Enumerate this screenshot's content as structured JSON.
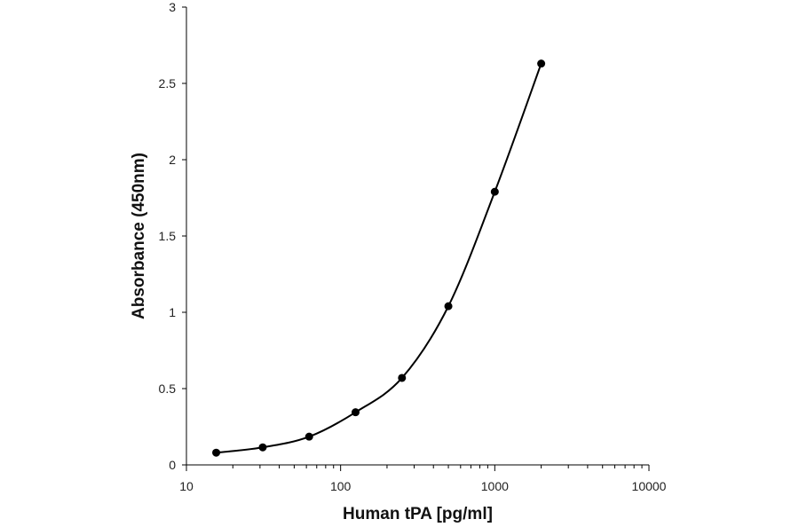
{
  "chart_data": {
    "type": "scatter",
    "title": "",
    "xlabel": "Human tPA [pg/ml]",
    "ylabel": "Absorbance (450nm)",
    "x_scale": "log",
    "xlim": [
      10,
      10000
    ],
    "ylim": [
      0,
      3
    ],
    "x_ticks": [
      "10",
      "100",
      "1000",
      "10000"
    ],
    "y_ticks": [
      "0",
      "0.5",
      "1",
      "1.5",
      "2",
      "2.5",
      "3"
    ],
    "grid": false,
    "legend": "none",
    "series": [
      {
        "x": [
          15.6,
          31.25,
          62.5,
          125,
          250,
          500,
          1000,
          2000
        ],
        "y": [
          0.08,
          0.115,
          0.185,
          0.345,
          0.57,
          1.04,
          1.79,
          2.63
        ],
        "marker": "circle",
        "line": "smooth",
        "color": "#000000"
      }
    ]
  }
}
